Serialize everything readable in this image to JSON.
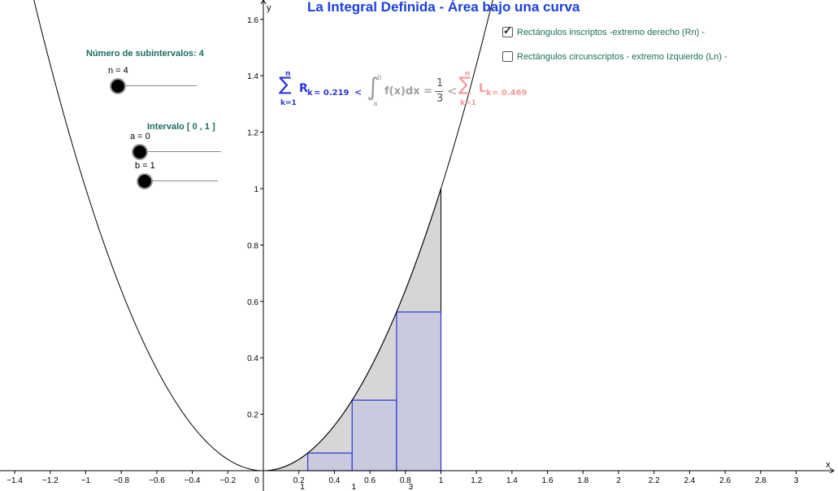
{
  "title": "La Integral Definida - Área bajo una curva",
  "controls": {
    "n_heading": "Número de subintervalos: 4",
    "n_label": "n = 4",
    "n_value": 4,
    "interval_heading": "Intervalo [ 0 , 1 ]",
    "a_label": "a = 0",
    "a_value": 0,
    "b_label": "b = 1",
    "b_value": 1
  },
  "checkboxes": [
    {
      "label": "Rectángulos inscriptos -extremo derecho (Rn) -",
      "checked": true
    },
    {
      "label": "Rectángulos circunscriptos - extremo Izquierdo (Ln) -",
      "checked": false
    }
  ],
  "formula": {
    "sum_top": "n",
    "sum_bottom": "k=1",
    "r_term": "R",
    "r_sub": "k",
    "r_value": "= 0.219",
    "lt1": "<",
    "integral_upper": "b",
    "integral_lower": "a",
    "integrand": "f(x)dx =",
    "frac_num": "1",
    "frac_den": "3",
    "lt2": "<",
    "l_term": "L",
    "l_sub": "k",
    "l_value": "= 0.469"
  },
  "axes": {
    "x_label": "x",
    "y_label": "y",
    "x_ticks": [
      "−1.4",
      "−1.2",
      "−1",
      "−0.8",
      "−0.6",
      "−0.4",
      "−0.2",
      "0",
      "0.2",
      "0.4",
      "0.6",
      "0.8",
      "1",
      "1.2",
      "1.4",
      "1.6",
      "1.8",
      "2",
      "2.2",
      "2.4",
      "2.6",
      "2.8",
      "3"
    ],
    "y_ticks": [
      "0.2",
      "0.4",
      "0.6",
      "0.8",
      "1",
      "1.2",
      "1.4",
      "1.6"
    ],
    "partition_labels": [
      "1",
      "1",
      "3"
    ]
  },
  "colors": {
    "title": "#1b3fe0",
    "teal": "#1a6e5e",
    "inscribed": "#2a35d8",
    "inscribed_fill": "#c9c9e0",
    "area_fill": "#d6d6d6",
    "circumscribed": "#f29a9a",
    "formula_gray": "#a0a0a0"
  }
}
